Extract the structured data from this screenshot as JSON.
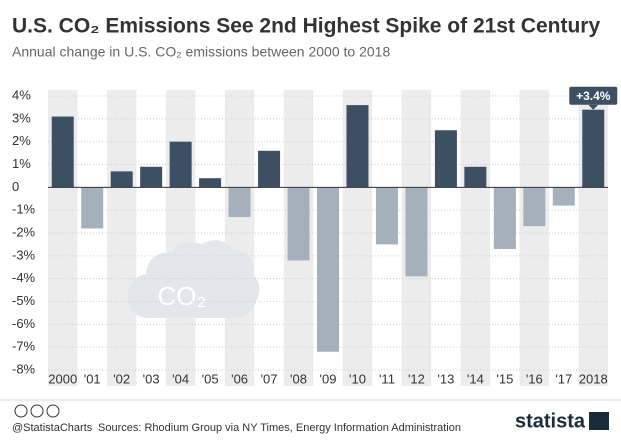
{
  "chart_data": {
    "type": "bar",
    "title": "U.S. CO₂ Emissions See 2nd Highest Spike of 21st Century",
    "subtitle": "Annual change in U.S. CO₂ emissions between 2000 to 2018",
    "categories": [
      "2000",
      "'01",
      "'02",
      "'03",
      "'04",
      "'05",
      "'06",
      "'07",
      "'08",
      "'09",
      "'10",
      "'11",
      "'12",
      "'13",
      "'14",
      "'15",
      "'16",
      "'17",
      "2018"
    ],
    "values": [
      3.1,
      -1.8,
      0.7,
      0.9,
      2.0,
      0.4,
      -1.3,
      1.6,
      -3.2,
      -7.2,
      3.6,
      -2.5,
      -3.9,
      2.5,
      0.9,
      -2.7,
      -1.7,
      -0.8,
      3.4
    ],
    "value_labels": [
      null,
      null,
      null,
      null,
      null,
      null,
      null,
      null,
      null,
      null,
      null,
      null,
      null,
      null,
      null,
      null,
      null,
      null,
      "+3.4%"
    ],
    "positive_color": "#3d4f63",
    "negative_color": "#a4b1bc",
    "ylim": [
      -8,
      4
    ],
    "yticks": [
      {
        "value": 4,
        "label": "4%"
      },
      {
        "value": 3,
        "label": "3%"
      },
      {
        "value": 2,
        "label": "2%"
      },
      {
        "value": 1,
        "label": "1%"
      },
      {
        "value": 0,
        "label": "0"
      },
      {
        "value": -1,
        "label": "-1%"
      },
      {
        "value": -2,
        "label": "-2%"
      },
      {
        "value": -3,
        "label": "-3%"
      },
      {
        "value": -4,
        "label": "-4%"
      },
      {
        "value": -5,
        "label": "-5%"
      },
      {
        "value": -6,
        "label": "-6%"
      },
      {
        "value": -7,
        "label": "-7%"
      },
      {
        "value": -8,
        "label": "-8%"
      }
    ],
    "grid": true,
    "icon_label": "CO₂",
    "footer": {
      "handle": "@StatistaCharts",
      "source": "Sources: Rhodium Group via NY Times, Energy Information Administration",
      "brand": "statista"
    }
  }
}
